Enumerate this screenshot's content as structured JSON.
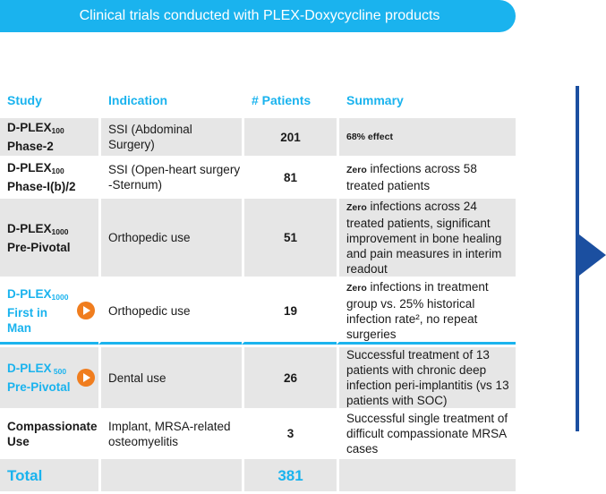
{
  "banner": {
    "title": "Clinical trials conducted with PLEX-Doxycycline products"
  },
  "columns": {
    "study": "Study",
    "indication": "Indication",
    "patients": "# Patients",
    "summary": "Summary"
  },
  "rows": [
    {
      "study_main": "D-PLEX",
      "study_sub": "100",
      "study_line2": "Phase-2",
      "indication": "SSI (Abdominal Surgery)",
      "patients": "201",
      "summary_bold": "68% effect",
      "summary_rest": ""
    },
    {
      "study_main": "D-PLEX",
      "study_sub": "100",
      "study_line2": "Phase-I(b)/2",
      "indication": "SSI (Open-heart surgery  -Sternum)",
      "patients": "81",
      "summary_bold": "Zero",
      "summary_rest": " infections across 58 treated patients"
    },
    {
      "study_main": "D-PLEX",
      "study_sub": "1000",
      "study_line2": "Pre-Pivotal",
      "indication": "Orthopedic use",
      "patients": "51",
      "summary_bold": "Zero",
      "summary_rest": " infections across 24 treated patients, significant improvement in bone healing and pain measures in interim readout"
    },
    {
      "study_main": "D-PLEX",
      "study_sub": "1000",
      "study_line2": "First in Man",
      "indication": "Orthopedic use",
      "patients": "19",
      "summary_bold": "Zero",
      "summary_rest": " infections in treatment group vs. 25% historical infection rate², no repeat surgeries"
    },
    {
      "study_main": "D-PLEX",
      "study_sub": " 500",
      "study_line2": "Pre-Pivotal",
      "indication": "Dental use",
      "patients": "26",
      "summary_bold": "",
      "summary_rest": "Successful treatment of 13 patients with chronic deep infection peri-implantitis (vs 13 patients with SOC)"
    },
    {
      "study_main": "Compassionate",
      "study_sub": "",
      "study_line2": "Use",
      "indication": "Implant, MRSA-related osteomyelitis",
      "patients": "3",
      "summary_bold": "",
      "summary_rest": "Successful single treatment of difficult compassionate MRSA cases"
    }
  ],
  "total": {
    "label": "Total",
    "patients": "381"
  },
  "colors": {
    "accent": "#1ab3ee",
    "orange": "#f07d1e",
    "navy": "#1b4fa0",
    "shade": "#e6e6e6"
  }
}
